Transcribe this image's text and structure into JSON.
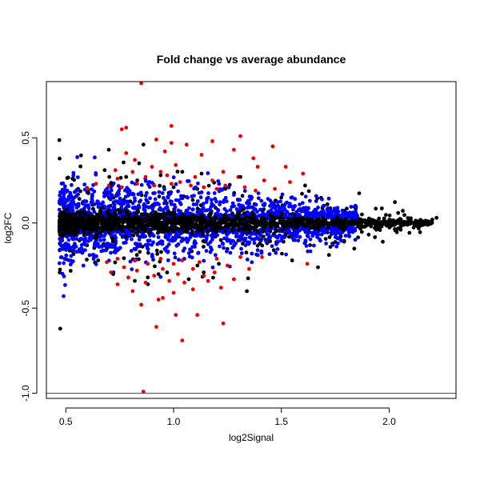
{
  "chart_data": {
    "type": "scatter",
    "title": "Fold change vs average abundance",
    "xlabel": "log2Signal",
    "ylabel": "log2FC",
    "xlim": [
      0.41,
      2.31
    ],
    "ylim": [
      -1.03,
      0.83
    ],
    "xticks": [
      0.5,
      1.0,
      1.5,
      2.0
    ],
    "xtick_labels": [
      "0.5",
      "1.0",
      "1.5",
      "2.0"
    ],
    "yticks": [
      -1.0,
      -0.5,
      0.0,
      0.5
    ],
    "ytick_labels": [
      "-1.0",
      "-0.5",
      "0.0",
      "0.5"
    ],
    "grid": false,
    "hline": {
      "y": -1.0,
      "color": "#3333cc"
    },
    "colors": {
      "not_significant": "#000000",
      "significant": "#0000ff",
      "large_change": "#ee0000"
    },
    "series": [
      {
        "color": "#ee0000",
        "points": [
          [
            0.85,
            0.82
          ],
          [
            0.99,
            0.57
          ],
          [
            0.78,
            0.56
          ],
          [
            0.76,
            0.55
          ],
          [
            1.31,
            0.51
          ],
          [
            0.92,
            0.49
          ],
          [
            0.99,
            0.47
          ],
          [
            1.18,
            0.48
          ],
          [
            1.46,
            0.45
          ],
          [
            1.06,
            0.46
          ],
          [
            1.28,
            0.43
          ],
          [
            0.96,
            0.42
          ],
          [
            0.78,
            0.41
          ],
          [
            1.13,
            0.4
          ],
          [
            1.37,
            0.38
          ],
          [
            0.82,
            0.37
          ],
          [
            1.01,
            0.34
          ],
          [
            0.9,
            0.33
          ],
          [
            1.39,
            0.33
          ],
          [
            0.73,
            0.31
          ],
          [
            1.52,
            0.33
          ],
          [
            1.23,
            0.3
          ],
          [
            0.94,
            0.3
          ],
          [
            0.81,
            0.3
          ],
          [
            1.6,
            0.29
          ],
          [
            0.97,
            0.28
          ],
          [
            1.1,
            0.27
          ],
          [
            1.3,
            0.27
          ],
          [
            0.74,
            0.26
          ],
          [
            0.87,
            0.27
          ],
          [
            1.18,
            0.25
          ],
          [
            1.42,
            0.25
          ],
          [
            1.54,
            0.24
          ],
          [
            1.03,
            0.24
          ],
          [
            0.64,
            0.23
          ],
          [
            0.7,
            0.22
          ],
          [
            0.83,
            0.23
          ],
          [
            0.91,
            0.22
          ],
          [
            0.99,
            0.23
          ],
          [
            1.08,
            0.22
          ],
          [
            1.14,
            0.21
          ],
          [
            1.24,
            0.22
          ],
          [
            1.33,
            0.21
          ],
          [
            1.47,
            0.2
          ],
          [
            0.76,
            0.21
          ],
          [
            1.2,
            0.2
          ],
          [
            0.6,
            0.2
          ],
          [
            1.38,
            0.19
          ],
          [
            0.86,
            -0.99
          ],
          [
            1.04,
            -0.69
          ],
          [
            1.23,
            -0.59
          ],
          [
            0.92,
            -0.61
          ],
          [
            1.01,
            -0.54
          ],
          [
            1.11,
            -0.54
          ],
          [
            0.85,
            -0.48
          ],
          [
            0.93,
            -0.45
          ],
          [
            0.95,
            -0.44
          ],
          [
            1.0,
            -0.41
          ],
          [
            0.81,
            -0.4
          ],
          [
            1.09,
            -0.39
          ],
          [
            1.22,
            -0.38
          ],
          [
            0.74,
            -0.36
          ],
          [
            0.87,
            -0.35
          ],
          [
            1.05,
            -0.35
          ],
          [
            1.16,
            -0.34
          ],
          [
            0.98,
            -0.34
          ],
          [
            1.28,
            -0.33
          ],
          [
            0.79,
            -0.32
          ],
          [
            0.91,
            -0.31
          ],
          [
            1.14,
            -0.31
          ],
          [
            1.02,
            -0.3
          ],
          [
            0.71,
            -0.29
          ],
          [
            1.19,
            -0.29
          ],
          [
            0.83,
            -0.28
          ],
          [
            0.95,
            -0.27
          ],
          [
            1.09,
            -0.27
          ],
          [
            1.35,
            -0.27
          ],
          [
            0.77,
            -0.26
          ],
          [
            1.25,
            -0.25
          ],
          [
            0.88,
            -0.24
          ],
          [
            1.62,
            -0.24
          ],
          [
            1.0,
            -0.24
          ],
          [
            1.12,
            -0.23
          ],
          [
            0.69,
            -0.23
          ],
          [
            1.04,
            -0.22
          ],
          [
            0.82,
            -0.22
          ],
          [
            1.2,
            -0.21
          ],
          [
            0.94,
            -0.21
          ],
          [
            1.31,
            -0.2
          ],
          [
            0.74,
            -0.21
          ],
          [
            1.41,
            -0.2
          ]
        ]
      },
      {
        "color": "#000000",
        "points": [
          [
            0.86,
            0.46
          ],
          [
            0.94,
            0.28
          ],
          [
            1.04,
            0.3
          ],
          [
            0.68,
            0.31
          ],
          [
            0.78,
            0.27
          ],
          [
            1.13,
            0.29
          ],
          [
            1.31,
            0.27
          ],
          [
            1.24,
            0.2
          ],
          [
            0.71,
            0.23
          ],
          [
            1.0,
            0.21
          ],
          [
            0.84,
            0.35
          ],
          [
            1.61,
            0.22
          ],
          [
            0.6,
            0.18
          ],
          [
            0.93,
            -0.3
          ],
          [
            1.14,
            -0.29
          ],
          [
            0.82,
            -0.34
          ],
          [
            1.34,
            -0.4
          ],
          [
            0.72,
            -0.3
          ],
          [
            1.07,
            -0.33
          ],
          [
            0.88,
            -0.32
          ],
          [
            0.97,
            -0.29
          ],
          [
            1.67,
            -0.26
          ],
          [
            1.21,
            -0.24
          ],
          [
            1.55,
            -0.22
          ],
          [
            0.65,
            -0.22
          ],
          [
            2.1,
            0.02
          ],
          [
            2.15,
            0.01
          ],
          [
            2.18,
            0.01
          ],
          [
            2.2,
            0.02
          ],
          [
            2.22,
            0.03
          ],
          [
            2.07,
            -0.01
          ],
          [
            2.12,
            0.0
          ]
        ]
      }
    ],
    "band": {
      "x_min": 0.47,
      "x_max": 2.2,
      "blue": {
        "color": "#0000ff",
        "count": 1800,
        "note": "dense significant cloud"
      },
      "black": {
        "color": "#000000",
        "count": 1400,
        "note": "dense core around zero"
      }
    }
  }
}
